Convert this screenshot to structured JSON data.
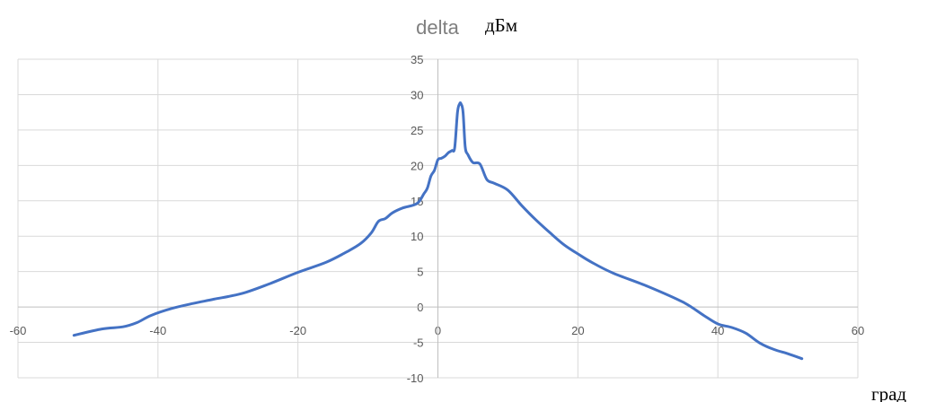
{
  "chart_data": {
    "type": "line",
    "title": "delta",
    "ylabel": "дБм",
    "xlabel": "град",
    "xlim": [
      -60,
      60
    ],
    "ylim": [
      -10,
      35
    ],
    "x_ticks": [
      "-60",
      "-40",
      "-20",
      "0",
      "20",
      "40",
      "60"
    ],
    "y_ticks": [
      "35",
      "30",
      "25",
      "20",
      "15",
      "10",
      "5",
      "0",
      "-5",
      "-10"
    ],
    "grid": true,
    "line_color": "#4472c4",
    "series": [
      {
        "x": [
          -52,
          -48,
          -45,
          -43,
          -41,
          -38,
          -35,
          -32,
          -28,
          -24,
          -20,
          -16,
          -13,
          -11,
          -9.5,
          -8.5,
          -7.5,
          -6.5,
          -5,
          -3,
          -2,
          -1.5,
          -1,
          -0.5,
          0,
          0.5,
          1,
          1.5,
          2,
          2.4,
          2.8,
          3.1,
          3.3,
          3.6,
          3.9,
          4.3,
          5,
          6,
          7,
          8,
          10,
          12,
          14,
          16,
          18,
          20,
          22,
          25,
          30,
          35,
          38,
          40,
          42,
          44,
          46,
          48,
          50,
          52
        ],
        "y": [
          -4,
          -3.1,
          -2.8,
          -2.2,
          -1.2,
          -0.2,
          0.5,
          1.1,
          1.9,
          3.3,
          4.9,
          6.3,
          7.8,
          9,
          10.5,
          12.1,
          12.5,
          13.3,
          14,
          14.6,
          16,
          16.8,
          18.5,
          19.3,
          20.8,
          21,
          21.3,
          21.8,
          22.1,
          22.5,
          27.5,
          28.7,
          28.7,
          27.5,
          22.6,
          21.5,
          20.4,
          20.2,
          18,
          17.5,
          16.5,
          14.3,
          12.3,
          10.5,
          8.8,
          7.5,
          6.3,
          4.8,
          2.9,
          0.7,
          -1.2,
          -2.4,
          -2.9,
          -3.7,
          -5.1,
          -6,
          -6.6,
          -7.3
        ]
      }
    ]
  }
}
